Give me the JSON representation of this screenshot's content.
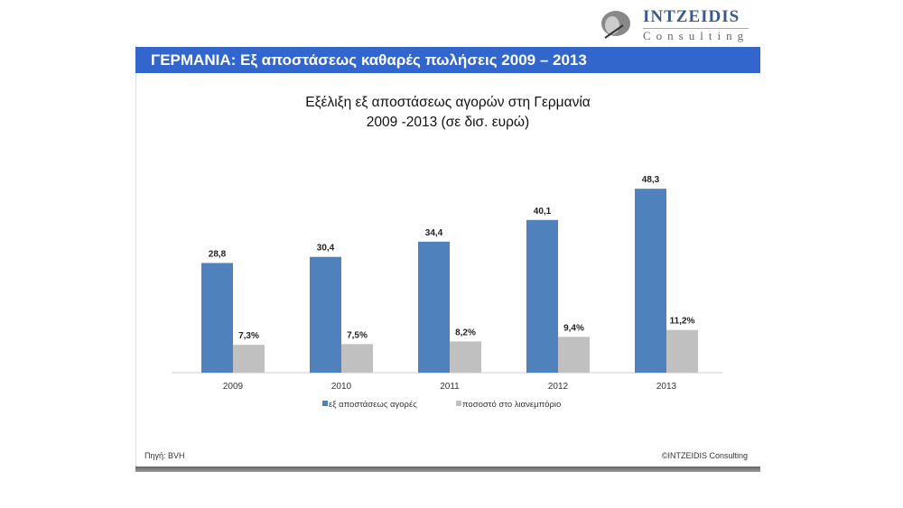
{
  "logo": {
    "name": "INTZEIDIS",
    "subtitle": "Consulting"
  },
  "banner": "ΓΕΡΜΑΝΙΑ: Εξ αποστάσεως καθαρές πωλήσεις 2009 – 2013",
  "footer": {
    "source": "Πηγή: BVH",
    "copyright": "©INTZEIDIS Consulting"
  },
  "chart_data": {
    "type": "bar",
    "title": "Εξέλιξη εξ αποστάσεως αγορών στη Γερμανία",
    "subtitle": "2009 -2013 (σε δισ. ευρώ)",
    "categories": [
      "2009",
      "2010",
      "2011",
      "2012",
      "2013"
    ],
    "series": [
      {
        "name": "εξ αποστάσεως αγορές",
        "values": [
          28.8,
          30.4,
          34.4,
          40.1,
          48.3
        ],
        "labels": [
          "28,8",
          "30,4",
          "34,4",
          "40,1",
          "48,3"
        ],
        "color": "#4f81bd"
      },
      {
        "name": "ποσοστό στο λιανεμπόριο",
        "values": [
          7.3,
          7.5,
          8.2,
          9.4,
          11.2
        ],
        "labels": [
          "7,3%",
          "7,5%",
          "8,2%",
          "9,4%",
          "11,2%"
        ],
        "color": "#c0c0c0"
      }
    ],
    "legend": "bottom",
    "grid": false
  }
}
